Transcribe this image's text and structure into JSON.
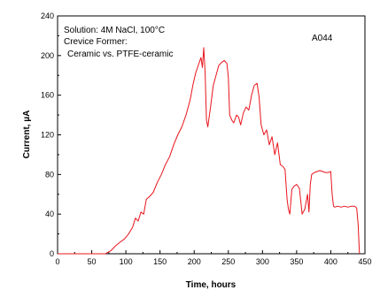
{
  "chart_data": {
    "type": "line",
    "xlabel": "Time, hours",
    "ylabel": "Current, µA",
    "xlim": [
      0,
      450
    ],
    "ylim": [
      0,
      240
    ],
    "x_ticks": [
      "0",
      "50",
      "100",
      "150",
      "200",
      "250",
      "300",
      "350",
      "400",
      "450"
    ],
    "y_ticks": [
      "0",
      "40",
      "80",
      "120",
      "160",
      "200",
      "240"
    ],
    "grid": false,
    "annotations": {
      "solution": "Solution: 4M NaCl, 100°C",
      "former_line1": "Crevice Former:",
      "former_line2": "Ceramic vs. PTFE-ceramic",
      "specimen": "A044"
    },
    "series": [
      {
        "color": "#e8141c",
        "x": [
          0,
          70,
          78,
          85,
          92,
          98,
          104,
          110,
          114,
          118,
          122,
          126,
          130,
          135,
          140,
          146,
          152,
          158,
          164,
          170,
          176,
          182,
          188,
          194,
          198,
          202,
          206,
          210,
          212,
          214,
          216,
          218,
          220,
          224,
          228,
          232,
          236,
          240,
          244,
          248,
          250,
          252,
          255,
          258,
          262,
          265,
          268,
          272,
          276,
          280,
          284,
          288,
          292,
          295,
          298,
          302,
          306,
          310,
          314,
          318,
          322,
          326,
          330,
          333,
          336,
          338,
          340,
          343,
          346,
          350,
          354,
          358,
          362,
          366,
          368,
          370,
          372,
          376,
          380,
          384,
          388,
          392,
          396,
          400,
          402,
          404,
          406,
          410,
          415,
          420,
          425,
          430,
          435,
          438,
          440,
          442
        ],
        "y": [
          0,
          0,
          3,
          8,
          12,
          15,
          20,
          27,
          36,
          33,
          42,
          40,
          55,
          58,
          62,
          72,
          80,
          90,
          98,
          110,
          120,
          128,
          140,
          155,
          170,
          182,
          190,
          198,
          188,
          208,
          182,
          135,
          128,
          148,
          170,
          180,
          190,
          193,
          195,
          192,
          178,
          140,
          135,
          132,
          140,
          138,
          130,
          142,
          148,
          145,
          160,
          170,
          172,
          158,
          130,
          120,
          125,
          110,
          118,
          100,
          112,
          90,
          88,
          85,
          55,
          45,
          40,
          65,
          68,
          70,
          66,
          40,
          45,
          60,
          42,
          70,
          80,
          82,
          83,
          84,
          83,
          82,
          82,
          83,
          60,
          48,
          47,
          48,
          47,
          48,
          47,
          48,
          48,
          46,
          30,
          0
        ]
      }
    ]
  }
}
